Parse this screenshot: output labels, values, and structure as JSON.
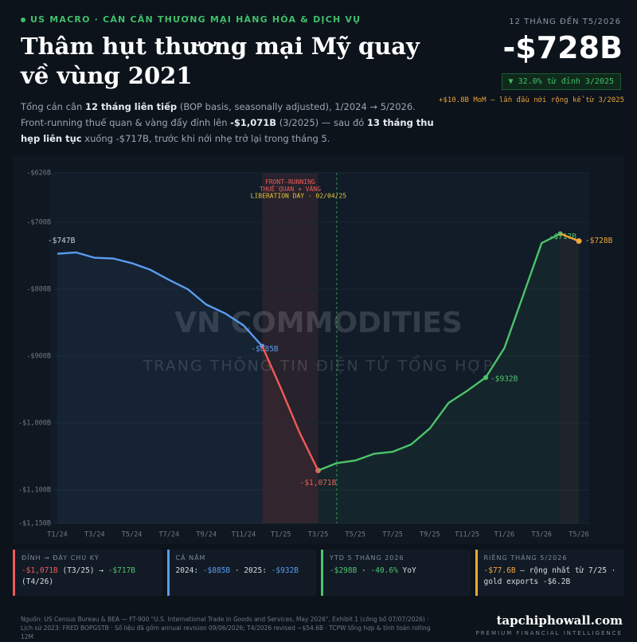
{
  "header": {
    "kicker": "US MACRO · CÁN CÂN THƯƠNG MẠI HÀNG HÓA & DỊCH VỤ",
    "title": "Thâm hụt thương mại Mỹ quay về vùng 2021",
    "subtitle": [
      {
        "text": "Tổng cán cân "
      },
      {
        "text": "12 tháng liên tiếp",
        "bold": true
      },
      {
        "text": " (BOP basis, seasonally adjusted), 1/2024 → 5/2026. Front-running thuế quan & vàng đẩy đỉnh lên "
      },
      {
        "text": "-$1,071B",
        "bold": true
      },
      {
        "text": " (3/2025) — sau đó "
      },
      {
        "text": "13 tháng thu hẹp liên tục",
        "bold": true
      },
      {
        "text": " xuống -$717B, trước khi nới nhẹ trở lại trong tháng 5."
      }
    ],
    "kpi_label": "12 THÁNG ĐẾN T5/2026",
    "kpi_value": "-$728B",
    "kpi_change": "▼ 32.0% từ đỉnh 3/2025",
    "kpi_note": "+$10.8B MoM — lần đầu nới rộng kể từ 3/2025"
  },
  "chart_data": {
    "type": "line",
    "categories": [
      "T1/24",
      null,
      "T3/24",
      null,
      "T5/24",
      null,
      "T7/24",
      null,
      "T9/24",
      null,
      "T11/24",
      null,
      "T1/25",
      null,
      "T3/25",
      null,
      "T5/25",
      null,
      "T7/25",
      null,
      "T9/25",
      null,
      "T11/25",
      null,
      "T1/26",
      null,
      "T3/26",
      null,
      "T5/26"
    ],
    "series": [
      {
        "color": "#5b9bef",
        "values": [
          -747,
          -745,
          -753,
          -754,
          -761,
          -771,
          -786,
          -800,
          -823,
          -836,
          -854,
          -885,
          null,
          null,
          null,
          null,
          null,
          null,
          null,
          null,
          null,
          null,
          null,
          null,
          null,
          null,
          null,
          null,
          null
        ],
        "value_labels": [
          "-$747B",
          null,
          null,
          null,
          null,
          null,
          null,
          null,
          null,
          null,
          null,
          "-$885B",
          null,
          null,
          null,
          null,
          null,
          null,
          null,
          null,
          null,
          null,
          null,
          null,
          null,
          null,
          null,
          null,
          null
        ]
      },
      {
        "color": "#ef5b57",
        "values": [
          null,
          null,
          null,
          null,
          null,
          null,
          null,
          null,
          null,
          null,
          null,
          -885,
          -948,
          -1014,
          -1071,
          null,
          null,
          null,
          null,
          null,
          null,
          null,
          null,
          null,
          null,
          null,
          null,
          null,
          null
        ],
        "value_labels": [
          null,
          null,
          null,
          null,
          null,
          null,
          null,
          null,
          null,
          null,
          null,
          null,
          null,
          null,
          "-$1,071B",
          null,
          null,
          null,
          null,
          null,
          null,
          null,
          null,
          null,
          null,
          null,
          null,
          null,
          null
        ]
      },
      {
        "color": "#4cc46a",
        "values": [
          null,
          null,
          null,
          null,
          null,
          null,
          null,
          null,
          null,
          null,
          null,
          null,
          null,
          null,
          -1071,
          -1060,
          -1056,
          -1046,
          -1043,
          -1032,
          -1008,
          -970,
          -952,
          -932,
          -888,
          -810,
          -731,
          -717,
          null
        ],
        "value_labels": [
          null,
          null,
          null,
          null,
          null,
          null,
          null,
          null,
          null,
          null,
          null,
          null,
          null,
          null,
          null,
          null,
          null,
          null,
          null,
          null,
          null,
          null,
          null,
          "-$932B",
          null,
          null,
          null,
          "-$717B",
          null
        ]
      },
      {
        "color": "#f0a63c",
        "values": [
          null,
          null,
          null,
          null,
          null,
          null,
          null,
          null,
          null,
          null,
          null,
          null,
          null,
          null,
          null,
          null,
          null,
          null,
          null,
          null,
          null,
          null,
          null,
          null,
          null,
          null,
          null,
          -717,
          -728
        ],
        "value_labels": [
          null,
          null,
          null,
          null,
          null,
          null,
          null,
          null,
          null,
          null,
          null,
          null,
          null,
          null,
          null,
          null,
          null,
          null,
          null,
          null,
          null,
          null,
          null,
          null,
          null,
          null,
          null,
          null,
          "-$728B"
        ]
      }
    ],
    "ylim": [
      -1150,
      -626
    ],
    "yticks": [
      {
        "value": -626,
        "label": "-$626B"
      },
      {
        "value": -700,
        "label": "-$700B"
      },
      {
        "value": -800,
        "label": "-$800B"
      },
      {
        "value": -900,
        "label": "-$900B"
      },
      {
        "value": -1000,
        "label": "-$1,000B"
      },
      {
        "value": -1100,
        "label": "-$1,100B"
      },
      {
        "value": -1150,
        "label": "-$1,150B"
      }
    ],
    "grid": true,
    "shade": {
      "from": 11,
      "to": 14,
      "color": "#ef5b57",
      "label": "FRONT-RUNNING THUẾ QUAN + VÀNG"
    },
    "vline": {
      "at": 15,
      "color": "#4cc46a",
      "label": "LIBERATION DAY · 02/04/25",
      "label_color": "#e9c53b"
    },
    "watermark": {
      "title": "VN COMMODITIES",
      "subtitle": "TRANG THÔNG TIN ĐIỆN TỬ TỔNG HỢP"
    }
  },
  "cards": [
    {
      "title": "ĐỈNH → ĐÁY CHU KỲ",
      "color": "#ef5b57",
      "body": [
        {
          "text": "-$1,071B",
          "color": "#ef5b57"
        },
        {
          "text": " (T3/25) → "
        },
        {
          "text": "-$717B",
          "color": "#4cc46a"
        },
        {
          "text": " (T4/26)"
        }
      ]
    },
    {
      "title": "CẢ NĂM",
      "color": "#5b9bef",
      "body": [
        {
          "text": "2024: "
        },
        {
          "text": "-$885B",
          "color": "#5b9bef"
        },
        {
          "text": " · 2025: "
        },
        {
          "text": "-$932B",
          "color": "#5b9bef"
        }
      ]
    },
    {
      "title": "YTD 5 THÁNG 2026",
      "color": "#4cc46a",
      "body": [
        {
          "text": "-$298B",
          "color": "#4cc46a"
        },
        {
          "text": " · "
        },
        {
          "text": "-40.6%",
          "color": "#4cc46a"
        },
        {
          "text": " YoY"
        }
      ]
    },
    {
      "title": "RIÊNG THÁNG 5/2026",
      "color": "#f0a63c",
      "body": [
        {
          "text": "-$77.6B",
          "color": "#f0a63c"
        },
        {
          "text": " — rộng nhất từ 7/25 · gold exports -$6.2B"
        }
      ]
    }
  ],
  "footer": {
    "source": "Nguồn: US Census Bureau & BEA — FT-900 \"U.S. International Trade in Goods and Services, May 2026\", Exhibit 1 (công bố 07/07/2026) · Lịch sử 2023: FRED BOPGSTB · Số liệu đã gồm annual revision 09/06/2026; T4/2026 revised −$54.6B · TCPW tổng hợp & tính toán rolling 12M",
    "brand": "tapchiphowall.com",
    "tagline": "PREMIUM FINANCIAL INTELLIGENCE"
  }
}
